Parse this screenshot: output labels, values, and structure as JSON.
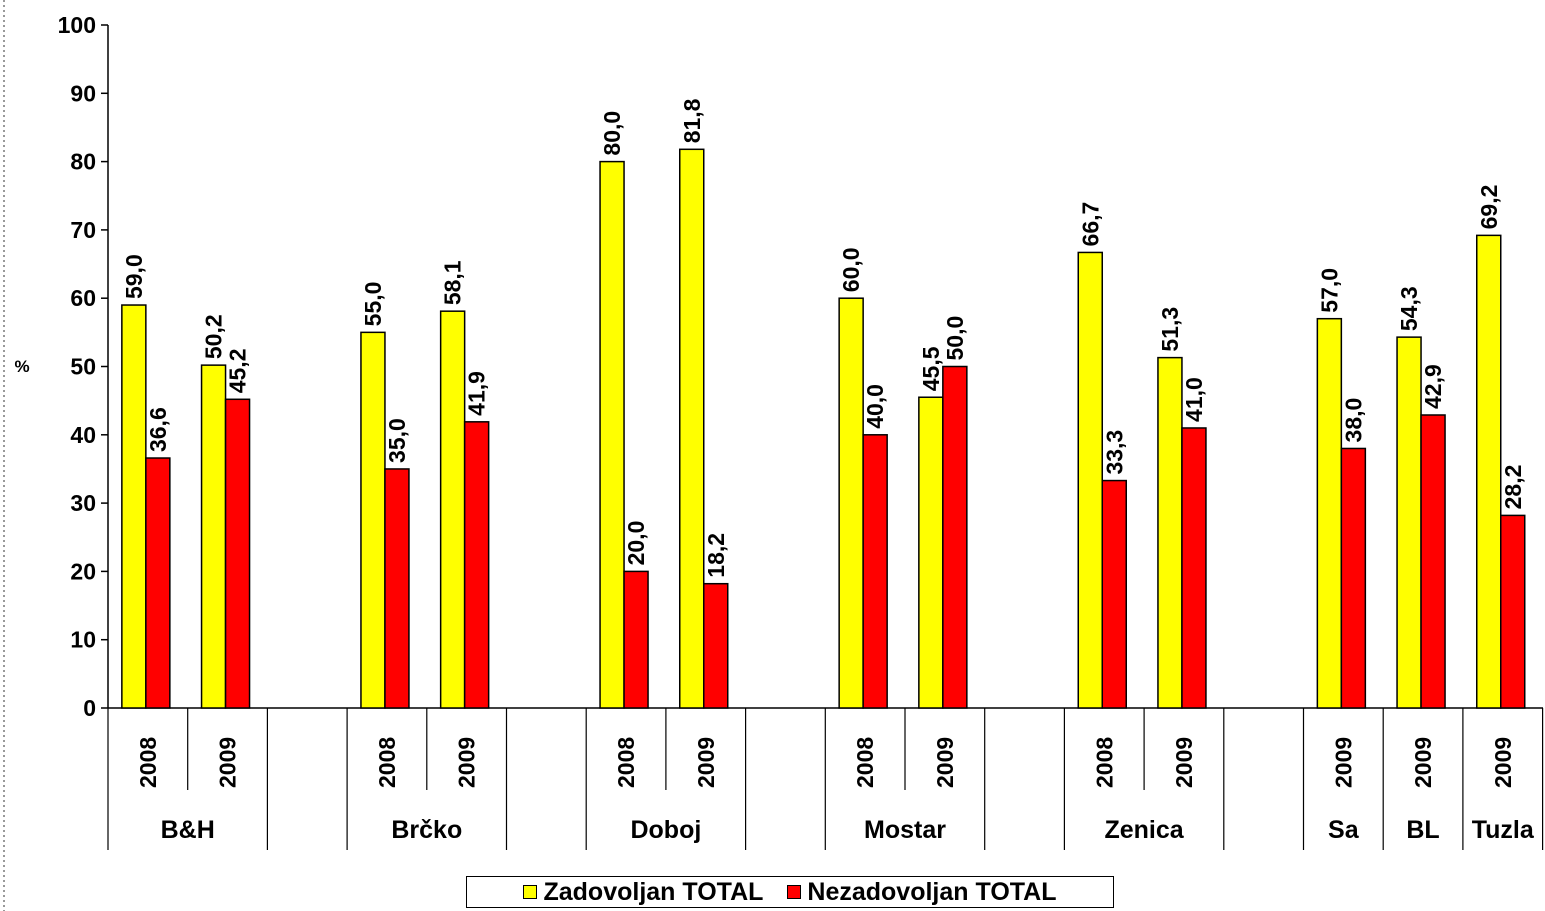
{
  "chart_data": {
    "type": "bar",
    "ylabel": "%",
    "ylim": [
      0,
      100
    ],
    "yticks": [
      "0",
      "10",
      "20",
      "30",
      "40",
      "50",
      "60",
      "70",
      "80",
      "90",
      "100"
    ],
    "grid": false,
    "legend_position": "bottom",
    "groups": [
      {
        "label": "B&H",
        "years": [
          "2008",
          "2009"
        ]
      },
      {
        "label": "Brčko",
        "years": [
          "2008",
          "2009"
        ]
      },
      {
        "label": "Doboj",
        "years": [
          "2008",
          "2009"
        ]
      },
      {
        "label": "Mostar",
        "years": [
          "2008",
          "2009"
        ]
      },
      {
        "label": "Zenica",
        "years": [
          "2008",
          "2009"
        ]
      },
      {
        "label": "Sa",
        "years": [
          "2009"
        ]
      },
      {
        "label": "BL",
        "years": [
          "2009"
        ]
      },
      {
        "label": "Tuzla",
        "years": [
          "2009"
        ]
      }
    ],
    "series": [
      {
        "name": "Zadovoljan TOTAL",
        "color": "#ffff00",
        "values": [
          59.0,
          50.2,
          55.0,
          58.1,
          80.0,
          81.8,
          60.0,
          45.5,
          66.7,
          51.3,
          57.0,
          54.3,
          69.2
        ],
        "labels": [
          "59,0",
          "50,2",
          "55,0",
          "58,1",
          "80,0",
          "81,8",
          "60,0",
          "45,5",
          "66,7",
          "51,3",
          "57,0",
          "54,3",
          "69,2"
        ]
      },
      {
        "name": "Nezadovoljan TOTAL",
        "color": "#ff0000",
        "values": [
          36.6,
          45.2,
          35.0,
          41.9,
          20.0,
          18.2,
          40.0,
          50.0,
          33.3,
          41.0,
          38.0,
          42.9,
          28.2
        ],
        "labels": [
          "36,6",
          "45,2",
          "35,0",
          "41,9",
          "20,0",
          "18,2",
          "40,0",
          "50,0",
          "33,3",
          "41,0",
          "38,0",
          "42,9",
          "28,2"
        ]
      }
    ]
  }
}
